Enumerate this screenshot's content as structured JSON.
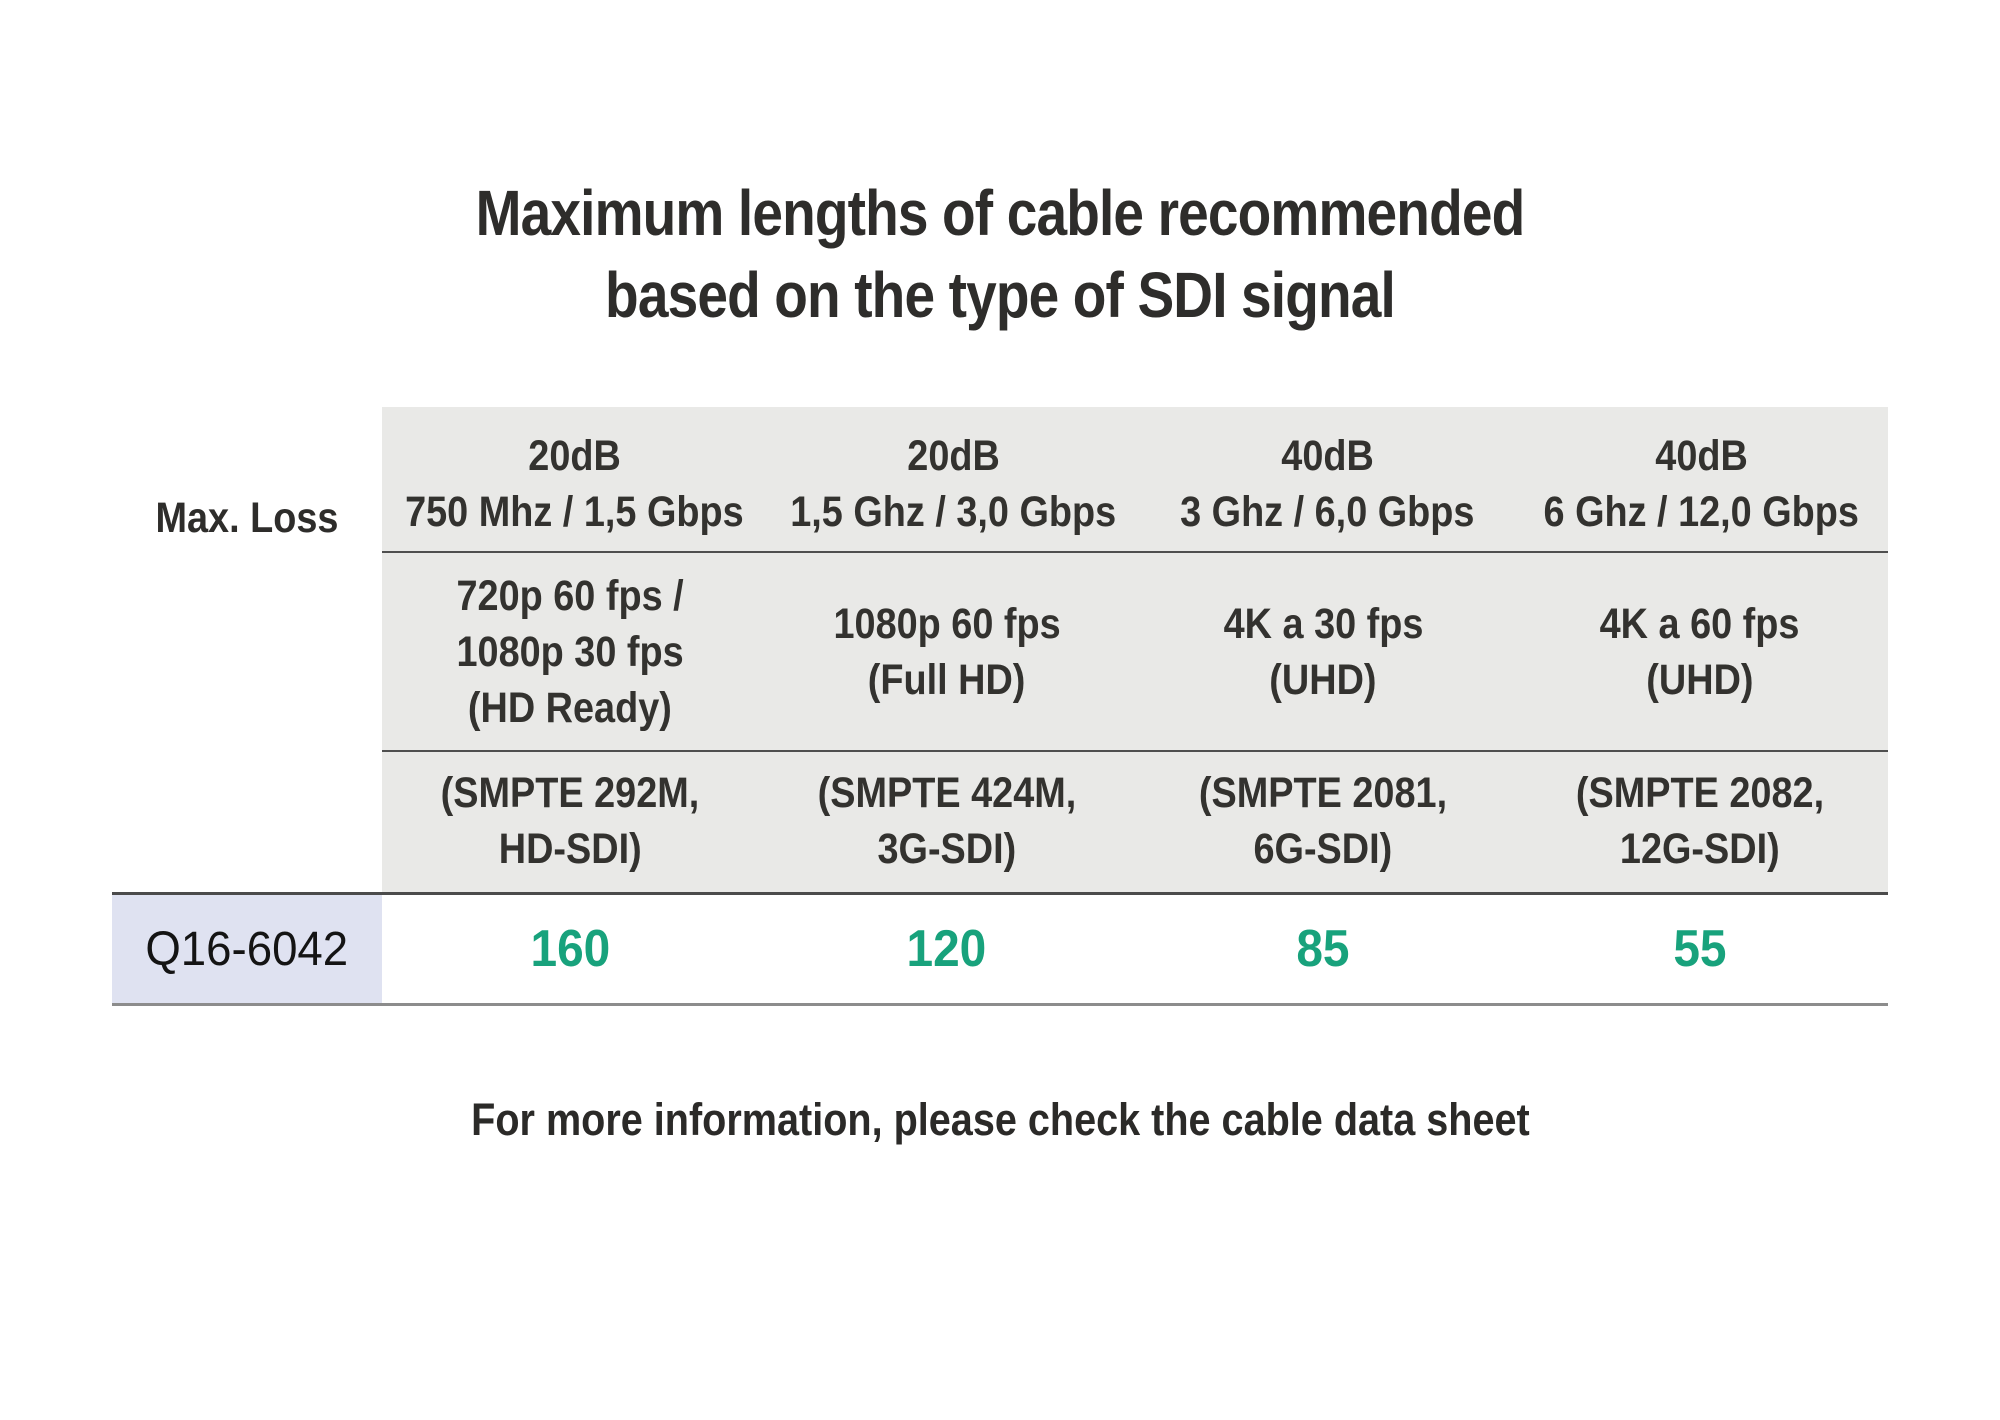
{
  "title": {
    "line1": "Maximum lengths of cable recommended",
    "line2": "based on the type of SDI signal"
  },
  "table": {
    "corner_label": "Max. Loss",
    "row_label": "Q16-6042",
    "columns": [
      {
        "loss": "20dB",
        "freq": "750 Mhz / 1,5 Gbps",
        "format_lines": [
          "720p 60 fps /",
          "1080p 30 fps",
          "(HD Ready)"
        ],
        "smpte_lines": [
          "(SMPTE 292M,",
          "HD-SDI)"
        ],
        "value": "160"
      },
      {
        "loss": "20dB",
        "freq": "1,5 Ghz / 3,0 Gbps",
        "format_lines": [
          "1080p 60 fps",
          "(Full HD)"
        ],
        "smpte_lines": [
          "(SMPTE 424M,",
          "3G-SDI)"
        ],
        "value": "120"
      },
      {
        "loss": "40dB",
        "freq": "3 Ghz / 6,0 Gbps",
        "format_lines": [
          "4K a 30 fps",
          "(UHD)"
        ],
        "smpte_lines": [
          "(SMPTE 2081,",
          "6G-SDI)"
        ],
        "value": "85"
      },
      {
        "loss": "40dB",
        "freq": "6 Ghz / 12,0 Gbps",
        "format_lines": [
          "4K a 60 fps",
          "(UHD)"
        ],
        "smpte_lines": [
          "(SMPTE 2082,",
          "12G-SDI)"
        ],
        "value": "55"
      }
    ]
  },
  "footer": {
    "note": "For more information, please check the cable data sheet"
  },
  "colors": {
    "header_background": "#e9e9e7",
    "row_label_background": "#dfe2f1",
    "value_green": "#18a27c",
    "text_dark": "#2e2d2b",
    "separator_line": "#4f4f4f",
    "row_bottom_line": "#8c8c8c"
  }
}
